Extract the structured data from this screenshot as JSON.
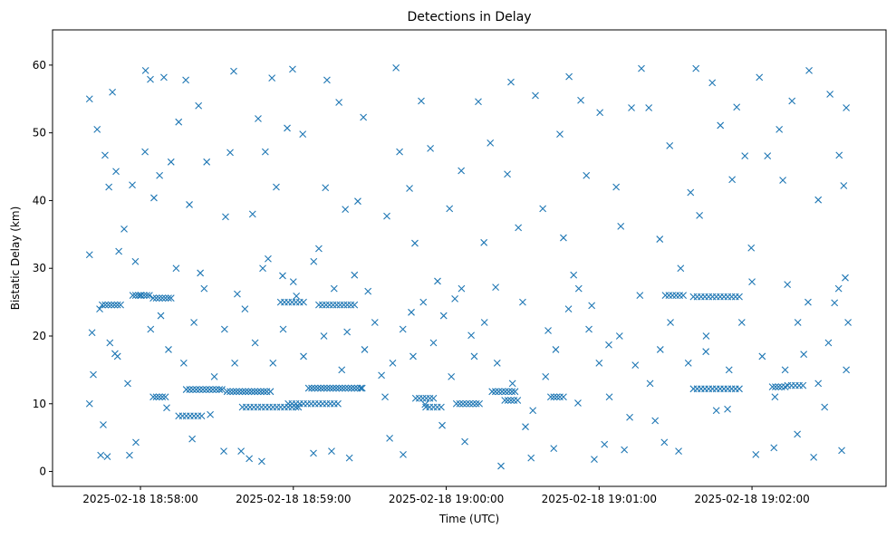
{
  "chart_data": {
    "type": "scatter",
    "title": "Detections in Delay",
    "xlabel": "Time (UTC)",
    "ylabel": "Bistatic Delay (km)",
    "x_units": "seconds after 2025-02-18 18:58:00",
    "xlim": [
      -34.5,
      292.6
    ],
    "ylim": [
      -2.2,
      65.2
    ],
    "grid": false,
    "marker": "x",
    "color": "#1f77b4",
    "x_ticks": [
      {
        "value": 0,
        "label": "2025-02-18 18:58:00"
      },
      {
        "value": 60,
        "label": "2025-02-18 18:59:00"
      },
      {
        "value": 120,
        "label": "2025-02-18 19:00:00"
      },
      {
        "value": 180,
        "label": "2025-02-18 19:01:00"
      },
      {
        "value": 240,
        "label": "2025-02-18 19:02:00"
      }
    ],
    "y_ticks": [
      {
        "value": 0,
        "label": "0"
      },
      {
        "value": 10,
        "label": "10"
      },
      {
        "value": 20,
        "label": "20"
      },
      {
        "value": 30,
        "label": "30"
      },
      {
        "value": 40,
        "label": "40"
      },
      {
        "value": 50,
        "label": "50"
      },
      {
        "value": 60,
        "label": "60"
      }
    ],
    "tracks": [
      {
        "d": 24.6,
        "t": [
          -15,
          -13.8,
          -12.6,
          -11.4,
          -10.2,
          -9,
          -7.8
        ]
      },
      {
        "d": 26.0,
        "t": [
          -3,
          -1.9,
          -0.8,
          0.3,
          1.4,
          2.5,
          3.5
        ]
      },
      {
        "d": 25.6,
        "t": [
          5,
          6.2,
          7.4,
          8.6,
          9.8,
          11,
          12
        ]
      },
      {
        "d": 12.1,
        "t": [
          18,
          19.3,
          20.6,
          21.9,
          23.2,
          24.5,
          25.8,
          27.1,
          28.4,
          29.7,
          31,
          32
        ]
      },
      {
        "d": 8.2,
        "t": [
          15,
          16.5,
          18,
          19.5,
          21,
          22.5,
          24
        ]
      },
      {
        "d": 11.0,
        "t": [
          5,
          6.2,
          7.4,
          8.6,
          9.8
        ]
      },
      {
        "d": 11.8,
        "t": [
          34,
          35.2,
          36.4,
          37.6,
          38.8,
          40,
          41.2,
          42.4,
          43.6,
          44.8,
          46,
          47.2,
          48.4,
          49.6,
          51
        ]
      },
      {
        "d": 9.5,
        "t": [
          40,
          41.5,
          43,
          44.5,
          46,
          47.5,
          49,
          50.5,
          52,
          53.5,
          55,
          56.5,
          58,
          59.5,
          61,
          62
        ]
      },
      {
        "d": 25.0,
        "t": [
          55,
          56.5,
          58,
          59.5,
          61,
          62.5,
          64
        ]
      },
      {
        "d": 12.3,
        "t": [
          66,
          67.2,
          68.4,
          69.6,
          70.8,
          72,
          73.2,
          74.4,
          75.6,
          76.8,
          78,
          79.2,
          80.4,
          81.6,
          82.8,
          84,
          85.2,
          86.4,
          87
        ]
      },
      {
        "d": 24.6,
        "t": [
          70,
          71.4,
          72.8,
          74.2,
          75.6,
          77,
          78.4,
          79.8,
          81.2,
          82.6,
          84
        ]
      },
      {
        "d": 10.0,
        "t": [
          58,
          59.5,
          61,
          62.5,
          64,
          65.5,
          67,
          68.5,
          70,
          71.5,
          73,
          74.5,
          76,
          77.5
        ]
      },
      {
        "d": 10.8,
        "t": [
          108,
          109.4,
          110.8,
          112.2,
          113.6,
          115
        ]
      },
      {
        "d": 9.5,
        "t": [
          112,
          113.5,
          115,
          116.5,
          118
        ]
      },
      {
        "d": 10.0,
        "t": [
          124,
          125.3,
          126.6,
          127.9,
          129.2,
          130.5,
          131.8,
          133
        ]
      },
      {
        "d": 11.8,
        "t": [
          138,
          139.3,
          140.6,
          141.9,
          143.2,
          144.5,
          145.8,
          147
        ]
      },
      {
        "d": 10.5,
        "t": [
          143,
          144.2,
          145.4,
          146.6,
          148
        ]
      },
      {
        "d": 11.0,
        "t": [
          161,
          162.2,
          163.4,
          164.6,
          166
        ]
      },
      {
        "d": 26.0,
        "t": [
          206,
          207.4,
          208.8,
          210.2,
          211.6,
          213
        ]
      },
      {
        "d": 25.8,
        "t": [
          217,
          218.5,
          220,
          221.5,
          223,
          224.5,
          226,
          227.5,
          229,
          230.5,
          232,
          233.5,
          235
        ]
      },
      {
        "d": 12.2,
        "t": [
          217,
          218.5,
          220,
          221.5,
          223,
          224.5,
          226,
          227.5,
          229,
          230.5,
          232,
          233.5,
          235
        ]
      },
      {
        "d": 12.5,
        "t": [
          248,
          249.2,
          250.4,
          251.6,
          253
        ]
      },
      {
        "d": 12.7,
        "t": [
          254,
          255.5,
          257,
          258.5,
          260
        ]
      }
    ],
    "points": [
      [
        -20,
        55
      ],
      [
        -20,
        32
      ],
      [
        -20,
        10
      ],
      [
        -18.5,
        14.3
      ],
      [
        -17,
        50.5
      ],
      [
        -15.6,
        2.4
      ],
      [
        -14.6,
        6.9
      ],
      [
        -13.9,
        46.7
      ],
      [
        -13,
        2.2
      ],
      [
        -12.4,
        42
      ],
      [
        -11,
        56
      ],
      [
        -10,
        17.4
      ],
      [
        -9.6,
        44.3
      ],
      [
        -8.5,
        32.5
      ],
      [
        -6.4,
        35.8
      ],
      [
        -4.3,
        2.4
      ],
      [
        -3.2,
        42.3
      ],
      [
        -1.8,
        4.3
      ],
      [
        1.8,
        47.2
      ],
      [
        2,
        59.2
      ],
      [
        3.9,
        57.9
      ],
      [
        5.3,
        40.4
      ],
      [
        7.5,
        43.7
      ],
      [
        9.2,
        58.2
      ],
      [
        10.3,
        9.4
      ],
      [
        12,
        45.7
      ],
      [
        15,
        51.6
      ],
      [
        17.8,
        57.8
      ],
      [
        19.2,
        39.4
      ],
      [
        20.3,
        4.8
      ],
      [
        22.8,
        54
      ],
      [
        23.5,
        29.3
      ],
      [
        26,
        45.7
      ],
      [
        27.4,
        8.4
      ],
      [
        32.7,
        3
      ],
      [
        33.4,
        37.6
      ],
      [
        35.2,
        47.1
      ],
      [
        36.6,
        59.1
      ],
      [
        38,
        26.2
      ],
      [
        39.5,
        3
      ],
      [
        42.7,
        1.9
      ],
      [
        44,
        38
      ],
      [
        46.2,
        52.1
      ],
      [
        47.6,
        1.5
      ],
      [
        49,
        47.2
      ],
      [
        50.1,
        31.4
      ],
      [
        51.6,
        58.1
      ],
      [
        53.3,
        42
      ],
      [
        55.8,
        28.9
      ],
      [
        57.6,
        50.7
      ],
      [
        59.7,
        59.4
      ],
      [
        61.2,
        25.9
      ],
      [
        63.7,
        49.8
      ],
      [
        67.9,
        2.7
      ],
      [
        70,
        32.9
      ],
      [
        72.6,
        41.9
      ],
      [
        73.2,
        57.8
      ],
      [
        75,
        3
      ],
      [
        77.9,
        54.5
      ],
      [
        80.4,
        38.7
      ],
      [
        81.1,
        20.6
      ],
      [
        82,
        2
      ],
      [
        85.3,
        39.9
      ],
      [
        87.5,
        52.3
      ],
      [
        89.3,
        26.6
      ],
      [
        94.6,
        14.2
      ],
      [
        96.7,
        37.7
      ],
      [
        97.8,
        4.9
      ],
      [
        100.3,
        59.6
      ],
      [
        101.7,
        47.2
      ],
      [
        103.1,
        2.5
      ],
      [
        105.6,
        41.8
      ],
      [
        106.3,
        23.5
      ],
      [
        107.7,
        33.7
      ],
      [
        110.2,
        54.7
      ],
      [
        111.7,
        9.9
      ],
      [
        113.8,
        47.7
      ],
      [
        116.6,
        28.1
      ],
      [
        118.4,
        6.8
      ],
      [
        121.3,
        38.8
      ],
      [
        123.4,
        25.5
      ],
      [
        125.9,
        44.4
      ],
      [
        127.3,
        4.4
      ],
      [
        129.8,
        20.1
      ],
      [
        132.6,
        54.6
      ],
      [
        134.8,
        33.8
      ],
      [
        137.3,
        48.5
      ],
      [
        139.4,
        27.2
      ],
      [
        141.5,
        0.8
      ],
      [
        144,
        43.9
      ],
      [
        145.4,
        57.5
      ],
      [
        148.3,
        36
      ],
      [
        151.1,
        6.6
      ],
      [
        153.3,
        2
      ],
      [
        155,
        55.5
      ],
      [
        157.9,
        38.8
      ],
      [
        160,
        20.8
      ],
      [
        162.2,
        3.4
      ],
      [
        164.6,
        49.8
      ],
      [
        166,
        34.5
      ],
      [
        168.2,
        58.3
      ],
      [
        170,
        29
      ],
      [
        171.7,
        10.1
      ],
      [
        172.8,
        54.8
      ],
      [
        175,
        43.7
      ],
      [
        177.1,
        24.5
      ],
      [
        178.1,
        1.8
      ],
      [
        180.3,
        53
      ],
      [
        182.1,
        4
      ],
      [
        183.8,
        18.7
      ],
      [
        186.7,
        42
      ],
      [
        188.5,
        36.2
      ],
      [
        189.9,
        3.2
      ],
      [
        192.7,
        53.7
      ],
      [
        194.2,
        15.7
      ],
      [
        196.6,
        59.5
      ],
      [
        199.5,
        53.7
      ],
      [
        202,
        7.5
      ],
      [
        203.8,
        34.3
      ],
      [
        205.6,
        4.3
      ],
      [
        207.7,
        48.1
      ],
      [
        211.2,
        3
      ],
      [
        215.9,
        41.2
      ],
      [
        218,
        59.5
      ],
      [
        219.4,
        37.8
      ],
      [
        221.9,
        17.7
      ],
      [
        224.4,
        57.4
      ],
      [
        227.6,
        51.1
      ],
      [
        230.4,
        9.2
      ],
      [
        232.2,
        43.1
      ],
      [
        234,
        53.8
      ],
      [
        237.2,
        46.6
      ],
      [
        239.7,
        33
      ],
      [
        241.5,
        2.5
      ],
      [
        242.9,
        58.2
      ],
      [
        246.1,
        46.6
      ],
      [
        248.6,
        3.5
      ],
      [
        250.7,
        50.5
      ],
      [
        252.1,
        43
      ],
      [
        253.9,
        27.6
      ],
      [
        255.7,
        54.7
      ],
      [
        257.8,
        5.5
      ],
      [
        260.3,
        17.3
      ],
      [
        262.4,
        59.2
      ],
      [
        264.2,
        2.1
      ],
      [
        266,
        40.1
      ],
      [
        268.5,
        9.5
      ],
      [
        270.6,
        55.7
      ],
      [
        272.4,
        24.9
      ],
      [
        274.2,
        46.7
      ],
      [
        275.2,
        3.1
      ],
      [
        276,
        42.2
      ],
      [
        276.6,
        28.6
      ],
      [
        277,
        53.7
      ],
      [
        277.7,
        22
      ],
      [
        -19,
        20.5
      ],
      [
        -16,
        24
      ],
      [
        -12,
        19
      ],
      [
        -9,
        17
      ],
      [
        -5,
        13
      ],
      [
        -2,
        31
      ],
      [
        0,
        26
      ],
      [
        4,
        21
      ],
      [
        8,
        23
      ],
      [
        11,
        18
      ],
      [
        14,
        30
      ],
      [
        17,
        16
      ],
      [
        21,
        22
      ],
      [
        25,
        27
      ],
      [
        29,
        14
      ],
      [
        33,
        21
      ],
      [
        37,
        16
      ],
      [
        41,
        24
      ],
      [
        45,
        19
      ],
      [
        48,
        30
      ],
      [
        52,
        16
      ],
      [
        56,
        21
      ],
      [
        60,
        28
      ],
      [
        64,
        17
      ],
      [
        68,
        31
      ],
      [
        72,
        20
      ],
      [
        76,
        27
      ],
      [
        79,
        15
      ],
      [
        84,
        29
      ],
      [
        88,
        18
      ],
      [
        92,
        22
      ],
      [
        96,
        11
      ],
      [
        99,
        16
      ],
      [
        103,
        21
      ],
      [
        107,
        17
      ],
      [
        111,
        25
      ],
      [
        115,
        19
      ],
      [
        119,
        23
      ],
      [
        122,
        14
      ],
      [
        126,
        27
      ],
      [
        131,
        17
      ],
      [
        135,
        22
      ],
      [
        140,
        16
      ],
      [
        146,
        13
      ],
      [
        150,
        25
      ],
      [
        154,
        9
      ],
      [
        159,
        14
      ],
      [
        163,
        18
      ],
      [
        168,
        24
      ],
      [
        172,
        27
      ],
      [
        176,
        21
      ],
      [
        180,
        16
      ],
      [
        184,
        11
      ],
      [
        188,
        20
      ],
      [
        192,
        8
      ],
      [
        196,
        26
      ],
      [
        200,
        13
      ],
      [
        204,
        18
      ],
      [
        208,
        22
      ],
      [
        212,
        30
      ],
      [
        215,
        16
      ],
      [
        222,
        20
      ],
      [
        226,
        9
      ],
      [
        231,
        15
      ],
      [
        236,
        22
      ],
      [
        240,
        28
      ],
      [
        244,
        17
      ],
      [
        249,
        11
      ],
      [
        253,
        15
      ],
      [
        258,
        22
      ],
      [
        262,
        25
      ],
      [
        266,
        13
      ],
      [
        270,
        19
      ],
      [
        274,
        27
      ],
      [
        277,
        15
      ]
    ]
  }
}
